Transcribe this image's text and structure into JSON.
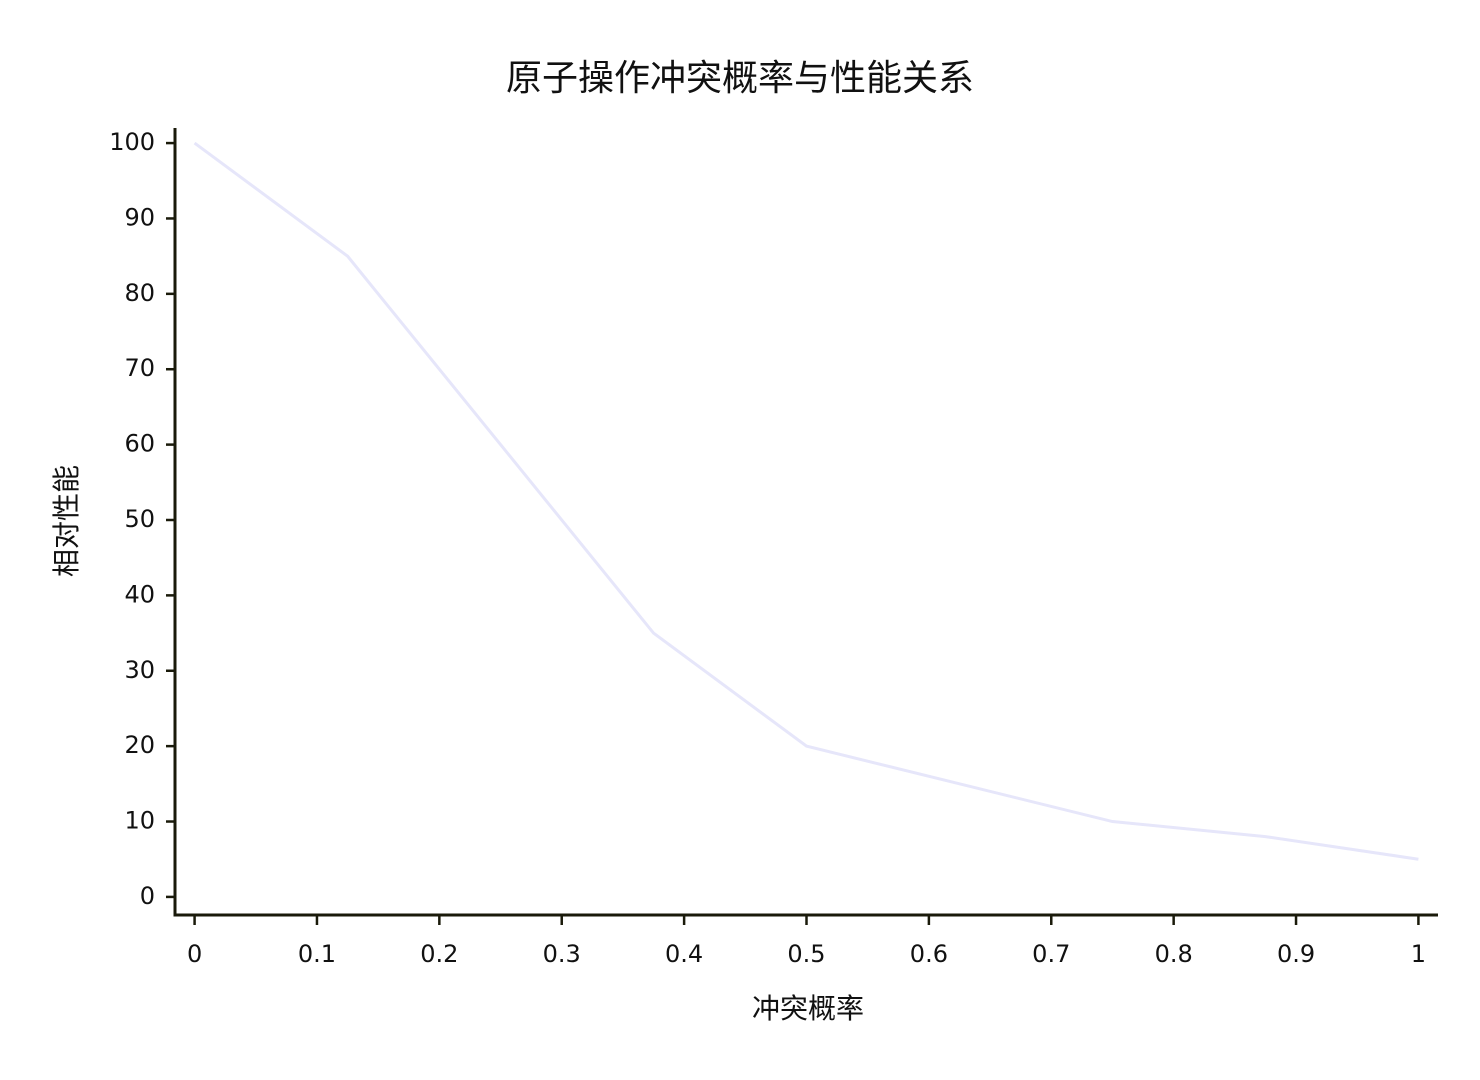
{
  "chart_data": {
    "type": "line",
    "title": "原子操作冲突概率与性能关系",
    "x_label": "冲突概率",
    "y_label": "相对性能",
    "x": [
      0,
      0.125,
      0.25,
      0.375,
      0.5,
      0.625,
      0.75,
      0.875,
      1
    ],
    "values": [
      100,
      85,
      60,
      35,
      20,
      15,
      10,
      8,
      5
    ],
    "color": "#e6e6fa",
    "axis_color": "#1a1a0a",
    "xlim": [
      -0.016,
      1.016
    ],
    "ylim": [
      -2.4,
      102
    ],
    "xticks": [
      0,
      0.1,
      0.2,
      0.3,
      0.4,
      0.5,
      0.6,
      0.7,
      0.8,
      0.9,
      1
    ],
    "yticks": [
      0,
      10,
      20,
      30,
      40,
      50,
      60,
      70,
      80,
      90,
      100
    ],
    "grid": false
  }
}
